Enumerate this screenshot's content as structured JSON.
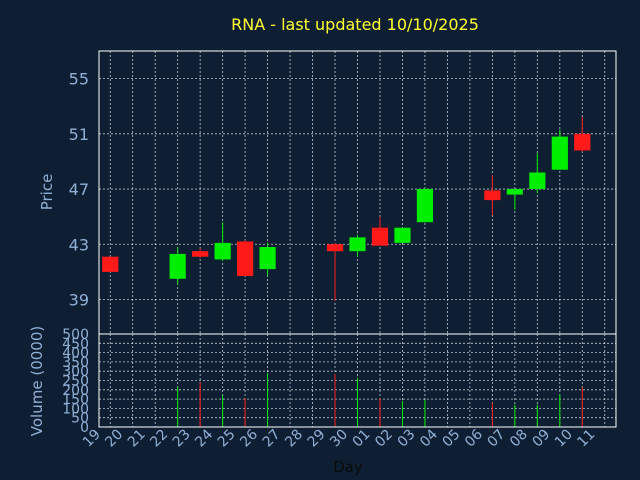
{
  "chart_data": {
    "type": "candlestick",
    "title": "RNA - last updated 10/10/2025",
    "price_axis": {
      "label": "Price",
      "ticks": [
        39,
        43,
        47,
        51,
        55
      ],
      "ylim": [
        36.5,
        57
      ]
    },
    "volume_axis": {
      "label": "Volume (0000)",
      "ticks": [
        0,
        50,
        100,
        150,
        200,
        250,
        300,
        350,
        400,
        450,
        500
      ],
      "ylim": [
        0,
        500
      ]
    },
    "x_axis": {
      "label": "Day",
      "tick_labels": [
        "19",
        "20",
        "21",
        "22",
        "23",
        "24",
        "25",
        "26",
        "27",
        "28",
        "29",
        "30",
        "01",
        "02",
        "03",
        "04",
        "05",
        "06",
        "07",
        "08",
        "09",
        "10",
        "11"
      ]
    },
    "grid": true,
    "colors": {
      "up": "#00ee00",
      "down": "#ff1a1a",
      "background": "#0f1f33",
      "frame": "#ffffff"
    },
    "candles": [
      {
        "day": "19",
        "open": 42.1,
        "high": 42.1,
        "low": 41.0,
        "close": 41.0,
        "volume": 0
      },
      {
        "day": "22",
        "open": 40.5,
        "high": 42.8,
        "low": 40.1,
        "close": 42.3,
        "volume": 215
      },
      {
        "day": "23",
        "open": 42.5,
        "high": 42.7,
        "low": 42.0,
        "close": 42.1,
        "volume": 240
      },
      {
        "day": "24",
        "open": 41.9,
        "high": 44.6,
        "low": 41.8,
        "close": 43.1,
        "volume": 170
      },
      {
        "day": "25",
        "open": 43.2,
        "high": 43.3,
        "low": 40.7,
        "close": 40.7,
        "volume": 155
      },
      {
        "day": "26",
        "open": 41.2,
        "high": 43.1,
        "low": 40.7,
        "close": 42.8,
        "volume": 290
      },
      {
        "day": "29",
        "open": 43.0,
        "high": 43.1,
        "low": 38.9,
        "close": 42.5,
        "volume": 285
      },
      {
        "day": "30",
        "open": 42.5,
        "high": 43.7,
        "low": 42.1,
        "close": 43.5,
        "volume": 265
      },
      {
        "day": "01",
        "open": 44.2,
        "high": 45.0,
        "low": 42.9,
        "close": 42.9,
        "volume": 155
      },
      {
        "day": "02",
        "open": 43.1,
        "high": 44.2,
        "low": 43.1,
        "close": 44.2,
        "volume": 140
      },
      {
        "day": "03",
        "open": 44.6,
        "high": 47.1,
        "low": 44.6,
        "close": 47.0,
        "volume": 145
      },
      {
        "day": "06",
        "open": 46.9,
        "high": 48.0,
        "low": 45.1,
        "close": 46.2,
        "volume": 130
      },
      {
        "day": "07",
        "open": 46.6,
        "high": 47.0,
        "low": 45.5,
        "close": 47.0,
        "volume": 120
      },
      {
        "day": "08",
        "open": 47.0,
        "high": 49.6,
        "low": 46.7,
        "close": 48.2,
        "volume": 120
      },
      {
        "day": "09",
        "open": 48.4,
        "high": 51.3,
        "low": 48.4,
        "close": 50.8,
        "volume": 175
      },
      {
        "day": "10",
        "open": 51.0,
        "high": 52.2,
        "low": 49.7,
        "close": 49.8,
        "volume": 215
      }
    ]
  }
}
